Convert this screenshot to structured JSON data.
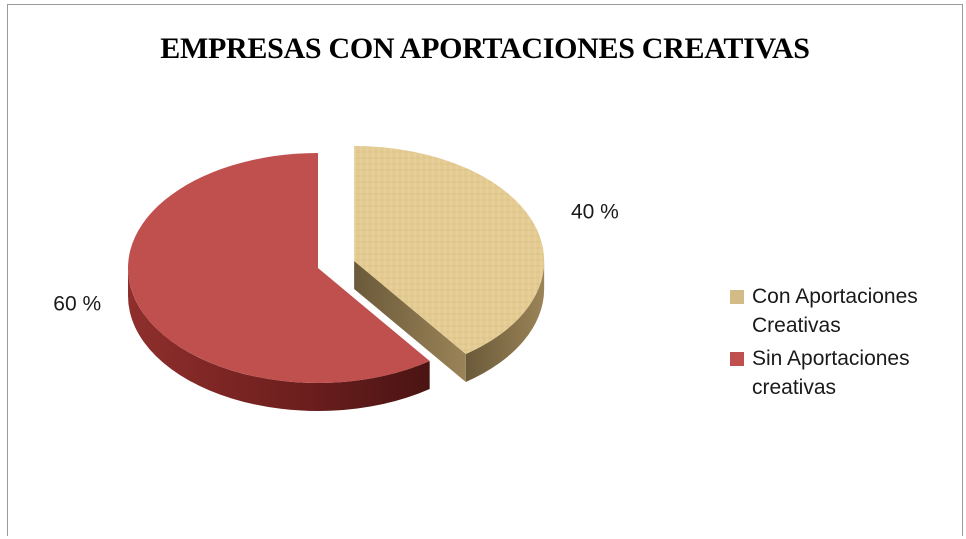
{
  "chart_data": {
    "type": "pie",
    "title": "EMPRESAS CON APORTACIONES CREATIVAS",
    "slices": [
      {
        "label": "Con Aportaciones Creativas",
        "value": 40,
        "data_label": "40 %",
        "color": "#e2c98f",
        "exploded": true
      },
      {
        "label": "Sin Aportaciones creativas",
        "value": 60,
        "data_label": "60 %",
        "color": "#c0504d",
        "exploded": false
      }
    ],
    "legend": {
      "placement": "right",
      "entries": [
        "Con Aportaciones Creativas",
        "Sin Aportaciones creativas"
      ]
    },
    "style": "3d"
  }
}
